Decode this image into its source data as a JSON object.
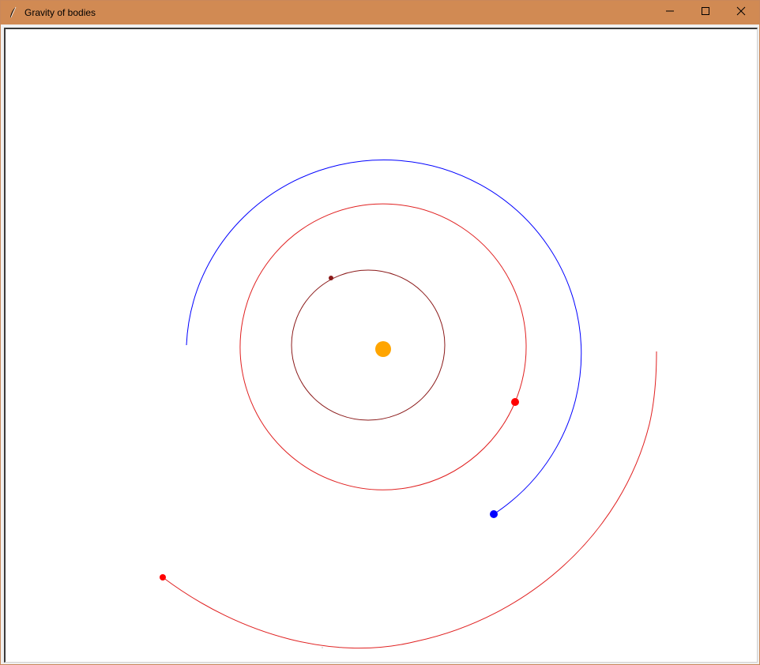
{
  "window": {
    "title": "Gravity of bodies",
    "icon": "feather-icon",
    "controls": [
      "minimize-icon",
      "maximize-icon",
      "close-icon"
    ],
    "titlebar_color": "#d18a53"
  },
  "scene": {
    "background": "#ffffff",
    "bodies": [
      {
        "name": "sun",
        "color": "#ffa500"
      },
      {
        "name": "inner-planet",
        "color": "#8b1a1a"
      },
      {
        "name": "middle-planet",
        "color": "#ff0000"
      },
      {
        "name": "blue-planet",
        "color": "#0000ff"
      },
      {
        "name": "outer-planet",
        "color": "#ff0000"
      }
    ]
  }
}
